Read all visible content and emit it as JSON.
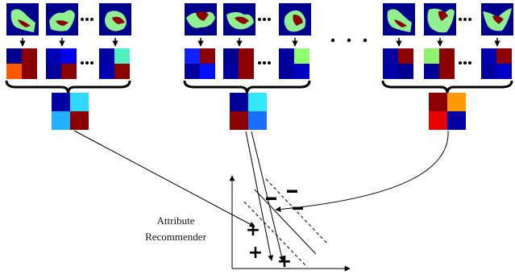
{
  "labels": {
    "recommender_line1": "Attribute",
    "recommender_line2": "Recommender",
    "ellipsis": "• • •"
  },
  "colors": {
    "mask_bg": "#00008f",
    "mask_green": "#90f090",
    "mask_red": "#8b0000",
    "arrow": "#000000"
  },
  "groups": [
    {
      "id": "group-1",
      "masks": [
        "bird-standing",
        "bird-left",
        "bird-small"
      ],
      "heatmaps": [
        [
          "#00008f",
          "#8b0000",
          "#ff5a00",
          "#8b0000"
        ],
        [
          "#0000b4",
          "#0000ee",
          "#00009a",
          "#8b0000"
        ],
        [
          "#0000a0",
          "#50f0c0",
          "#0000b0",
          "#8b0000"
        ]
      ],
      "pooled": [
        "#0000a8",
        "#30d8ff",
        "#20b0ff",
        "#8b0000"
      ]
    },
    {
      "id": "group-2",
      "masks": [
        "bird-flying",
        "bird-diving",
        "bird-perched"
      ],
      "heatmaps": [
        [
          "#1020ff",
          "#8b0000",
          "#0000a0",
          "#0010ff"
        ],
        [
          "#00008f",
          "#8b0000",
          "#0000a0",
          "#8b0000"
        ],
        [
          "#0000a0",
          "#90ff70",
          "#00009a",
          "#0000c0"
        ]
      ],
      "pooled": [
        "#00009a",
        "#30e8ff",
        "#8b0000",
        "#1870ff"
      ]
    },
    {
      "id": "group-3",
      "masks": [
        "bird-standing",
        "bird-crest",
        "bird-wings"
      ],
      "heatmaps": [
        [
          "#0000a0",
          "#8b0000",
          "#0000a8",
          "#00008f"
        ],
        [
          "#90f070",
          "#8b0000",
          "#00009a",
          "#8b0000"
        ],
        [
          "#0000b0",
          "#8b0000",
          "#0000a0",
          "#0000c8"
        ]
      ],
      "pooled": [
        "#8b0000",
        "#ff9a00",
        "#e80000",
        "#0000a0"
      ]
    }
  ],
  "scatter": {
    "plus_marks": [
      "+",
      "+",
      "+"
    ],
    "minus_marks": [
      "−",
      "−",
      "−"
    ]
  }
}
